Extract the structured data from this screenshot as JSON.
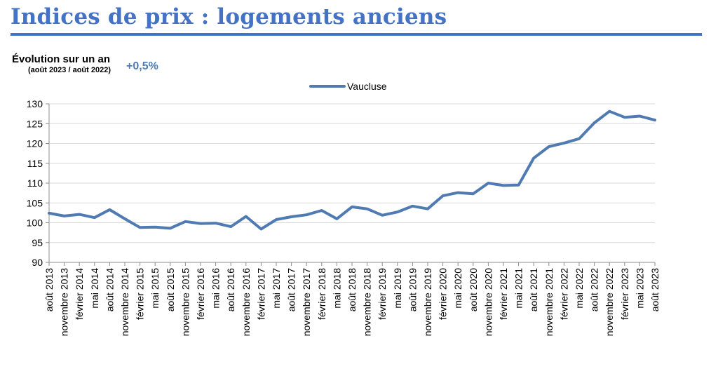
{
  "header": {
    "title": "Indices de prix : logements anciens",
    "accent_color": "#4472c4"
  },
  "evolution": {
    "label": "Évolution sur un an",
    "period": "(août 2023 / août 2022)",
    "value": "+0,5%",
    "value_color": "#4f7bb2"
  },
  "chart_data": {
    "type": "line",
    "title": "",
    "xlabel": "",
    "ylabel": "",
    "ylim": [
      90,
      130
    ],
    "y_ticks": [
      90,
      95,
      100,
      105,
      110,
      115,
      120,
      125,
      130
    ],
    "grid": true,
    "legend_position": "top-center",
    "categories": [
      "août 2013",
      "novembre 2013",
      "février 2014",
      "mai 2014",
      "août 2014",
      "novembre 2014",
      "février 2015",
      "mai 2015",
      "août 2015",
      "novembre 2015",
      "février 2016",
      "mai 2016",
      "août 2016",
      "novembre 2016",
      "février 2017",
      "mai 2017",
      "août 2017",
      "novembre 2017",
      "février 2018",
      "mai 2018",
      "août 2018",
      "novembre 2018",
      "février 2019",
      "mai 2019",
      "août 2019",
      "novembre 2019",
      "février 2020",
      "mai 2020",
      "août 2020",
      "novembre 2020",
      "février 2021",
      "mai 2021",
      "août 2021",
      "novembre 2021",
      "février 2022",
      "mai 2022",
      "août 2022",
      "novembre 2022",
      "février 2023",
      "mai 2023",
      "août 2023"
    ],
    "series": [
      {
        "name": "Vaucluse",
        "color": "#4f7bb2",
        "values": [
          102.4,
          101.7,
          102.1,
          101.3,
          103.3,
          101.0,
          98.8,
          98.9,
          98.6,
          100.3,
          99.8,
          99.9,
          99.0,
          101.6,
          98.4,
          100.8,
          101.5,
          102.0,
          103.1,
          101.0,
          104.0,
          103.5,
          101.9,
          102.7,
          104.2,
          103.5,
          106.8,
          107.6,
          107.3,
          110.0,
          109.4,
          109.5,
          116.3,
          119.2,
          120.1,
          121.2,
          125.2,
          128.1,
          126.6,
          126.9,
          125.9
        ]
      }
    ]
  }
}
